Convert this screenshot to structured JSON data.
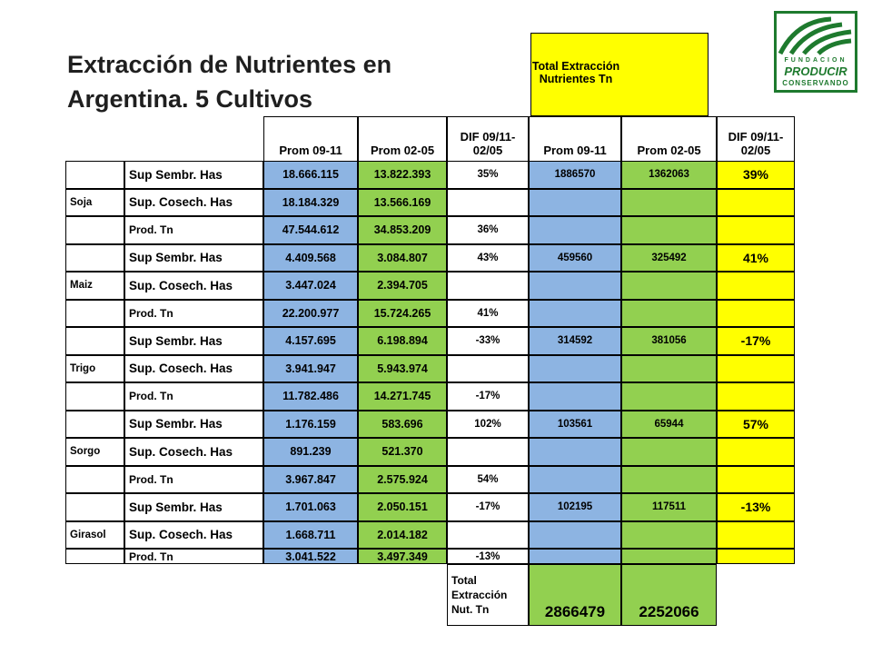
{
  "title": "Extracción de Nutrientes en Argentina.  5 Cultivos",
  "logo": {
    "line1": "FUNDACION",
    "line2": "PRODUCIR",
    "line3": "CONSERVANDO",
    "color": "#1e7a2e"
  },
  "colors": {
    "blue": "#8db4e2",
    "green": "#92d050",
    "yellow": "#ffff00"
  },
  "table": {
    "total_header": "Total Extracción Nutrientes Tn",
    "columns": [
      "Prom 09-11",
      "Prom 02-05",
      "DIF 09/11-02/05",
      "Prom 09-11",
      "Prom 02-05",
      "DIF 09/11-02/05"
    ],
    "crops": [
      {
        "name": "Soja",
        "rows": [
          {
            "label": "Sup  Sembr.  Has",
            "p0911": "18.666.115",
            "p0205": "13.822.393",
            "dif": "35%"
          },
          {
            "label": "Sup.  Cosech.  Has",
            "p0911": "18.184.329",
            "p0205": "13.566.169",
            "dif": ""
          },
          {
            "label": "Prod. Tn",
            "p0911": "47.544.612",
            "p0205": "34.853.209",
            "dif": "36%"
          }
        ],
        "extr_0911": "1886570",
        "extr_0205": "1362063",
        "extr_dif": "39%"
      },
      {
        "name": "Maiz",
        "rows": [
          {
            "label": "Sup  Sembr.  Has",
            "p0911": "4.409.568",
            "p0205": "3.084.807",
            "dif": "43%"
          },
          {
            "label": "Sup.  Cosech.  Has",
            "p0911": "3.447.024",
            "p0205": "2.394.705",
            "dif": ""
          },
          {
            "label": "Prod. Tn",
            "p0911": "22.200.977",
            "p0205": "15.724.265",
            "dif": "41%"
          }
        ],
        "extr_0911": "459560",
        "extr_0205": "325492",
        "extr_dif": "41%"
      },
      {
        "name": "Trigo",
        "rows": [
          {
            "label": "Sup  Sembr.  Has",
            "p0911": "4.157.695",
            "p0205": "6.198.894",
            "dif": "-33%"
          },
          {
            "label": "Sup.  Cosech.  Has",
            "p0911": "3.941.947",
            "p0205": "5.943.974",
            "dif": ""
          },
          {
            "label": "Prod. Tn",
            "p0911": "11.782.486",
            "p0205": "14.271.745",
            "dif": "-17%"
          }
        ],
        "extr_0911": "314592",
        "extr_0205": "381056",
        "extr_dif": "-17%"
      },
      {
        "name": "Sorgo",
        "rows": [
          {
            "label": "Sup  Sembr.  Has",
            "p0911": "1.176.159",
            "p0205": "583.696",
            "dif": "102%"
          },
          {
            "label": "Sup.  Cosech.  Has",
            "p0911": "891.239",
            "p0205": "521.370",
            "dif": ""
          },
          {
            "label": "Prod. Tn",
            "p0911": "3.967.847",
            "p0205": "2.575.924",
            "dif": "54%"
          }
        ],
        "extr_0911": "103561",
        "extr_0205": "65944",
        "extr_dif": "57%"
      },
      {
        "name": "Girasol",
        "rows": [
          {
            "label": "Sup  Sembr.  Has",
            "p0911": "1.701.063",
            "p0205": "2.050.151",
            "dif": "-17%"
          },
          {
            "label": "Sup.  Cosech.  Has",
            "p0911": "1.668.711",
            "p0205": "2.014.182",
            "dif": ""
          },
          {
            "label": "Prod. Tn",
            "p0911": "3.041.522",
            "p0205": "3.497.349",
            "dif": "-13%"
          }
        ],
        "extr_0911": "102195",
        "extr_0205": "117511",
        "extr_dif": "-13%"
      }
    ],
    "total_label": "Total Extracción Nut. Tn",
    "total_0911": "2866479",
    "total_0205": "2252066"
  }
}
